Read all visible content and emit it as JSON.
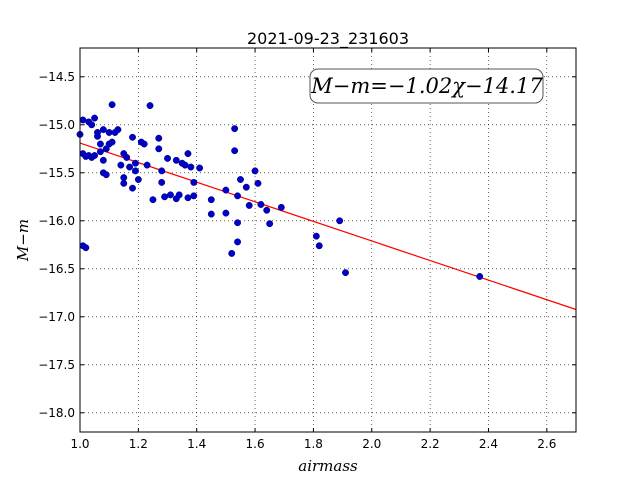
{
  "chart_data": {
    "type": "scatter",
    "title": "2021-09-23_231603",
    "xlabel": "airmass",
    "ylabel": "M−m",
    "annotation": "M−m=−1.02χ−14.17",
    "xlim": [
      1.0,
      2.7
    ],
    "ylim": [
      -18.2,
      -14.2
    ],
    "y_inverted": true,
    "grid": true,
    "x_ticks": [
      1.0,
      1.2,
      1.4,
      1.6,
      1.8,
      2.0,
      2.2,
      2.4,
      2.6
    ],
    "x_tick_labels": [
      "1.0",
      "1.2",
      "1.4",
      "1.6",
      "1.8",
      "2.0",
      "2.2",
      "2.4",
      "2.6"
    ],
    "y_ticks": [
      -14.5,
      -15.0,
      -15.5,
      -16.0,
      -16.5,
      -17.0,
      -17.5,
      -18.0
    ],
    "y_tick_labels": [
      "−14.5",
      "−15.0",
      "−15.5",
      "−16.0",
      "−16.5",
      "−17.0",
      "−17.5",
      "−18.0"
    ],
    "fit": {
      "slope": -1.02,
      "intercept": -14.17,
      "color": "#ff0000"
    },
    "point_color": "#0000cc",
    "points": [
      [
        1.0,
        -15.1
      ],
      [
        1.01,
        -14.95
      ],
      [
        1.01,
        -15.3
      ],
      [
        1.02,
        -16.28
      ],
      [
        1.02,
        -15.33
      ],
      [
        1.03,
        -14.97
      ],
      [
        1.03,
        -15.32
      ],
      [
        1.04,
        -15.0
      ],
      [
        1.04,
        -15.34
      ],
      [
        1.05,
        -14.93
      ],
      [
        1.05,
        -15.32
      ],
      [
        1.06,
        -15.08
      ],
      [
        1.06,
        -15.12
      ],
      [
        1.07,
        -15.2
      ],
      [
        1.07,
        -15.28
      ],
      [
        1.08,
        -15.05
      ],
      [
        1.08,
        -15.37
      ],
      [
        1.08,
        -15.5
      ],
      [
        1.09,
        -15.25
      ],
      [
        1.09,
        -15.52
      ],
      [
        1.1,
        -15.2
      ],
      [
        1.1,
        -15.08
      ],
      [
        1.11,
        -14.79
      ],
      [
        1.11,
        -15.18
      ],
      [
        1.12,
        -15.08
      ],
      [
        1.13,
        -15.05
      ],
      [
        1.14,
        -15.42
      ],
      [
        1.15,
        -15.3
      ],
      [
        1.15,
        -15.55
      ],
      [
        1.15,
        -15.61
      ],
      [
        1.16,
        -15.34
      ],
      [
        1.17,
        -15.44
      ],
      [
        1.18,
        -15.13
      ],
      [
        1.18,
        -15.66
      ],
      [
        1.19,
        -15.4
      ],
      [
        1.19,
        -15.48
      ],
      [
        1.2,
        -15.57
      ],
      [
        1.21,
        -15.18
      ],
      [
        1.22,
        -15.2
      ],
      [
        1.23,
        -15.42
      ],
      [
        1.24,
        -14.8
      ],
      [
        1.25,
        -15.78
      ],
      [
        1.27,
        -15.14
      ],
      [
        1.27,
        -15.25
      ],
      [
        1.28,
        -15.48
      ],
      [
        1.28,
        -15.6
      ],
      [
        1.29,
        -15.75
      ],
      [
        1.3,
        -15.35
      ],
      [
        1.31,
        -15.73
      ],
      [
        1.33,
        -15.37
      ],
      [
        1.33,
        -15.77
      ],
      [
        1.34,
        -15.73
      ],
      [
        1.35,
        -15.4
      ],
      [
        1.36,
        -15.42
      ],
      [
        1.37,
        -15.3
      ],
      [
        1.37,
        -15.76
      ],
      [
        1.38,
        -15.44
      ],
      [
        1.39,
        -15.6
      ],
      [
        1.39,
        -15.74
      ],
      [
        1.41,
        -15.45
      ],
      [
        1.45,
        -15.78
      ],
      [
        1.45,
        -15.93
      ],
      [
        1.5,
        -15.68
      ],
      [
        1.5,
        -15.92
      ],
      [
        1.52,
        -16.34
      ],
      [
        1.53,
        -15.27
      ],
      [
        1.53,
        -15.04
      ],
      [
        1.54,
        -16.02
      ],
      [
        1.54,
        -16.22
      ],
      [
        1.55,
        -15.57
      ],
      [
        1.57,
        -15.65
      ],
      [
        1.58,
        -15.84
      ],
      [
        1.6,
        -15.48
      ],
      [
        1.61,
        -15.61
      ],
      [
        1.62,
        -15.83
      ],
      [
        1.64,
        -15.89
      ],
      [
        1.65,
        -16.03
      ],
      [
        1.69,
        -15.86
      ],
      [
        1.81,
        -16.16
      ],
      [
        1.82,
        -16.26
      ],
      [
        1.89,
        -16.0
      ],
      [
        1.91,
        -16.54
      ],
      [
        2.37,
        -16.58
      ],
      [
        1.54,
        -15.74
      ],
      [
        1.01,
        -16.26
      ]
    ]
  }
}
